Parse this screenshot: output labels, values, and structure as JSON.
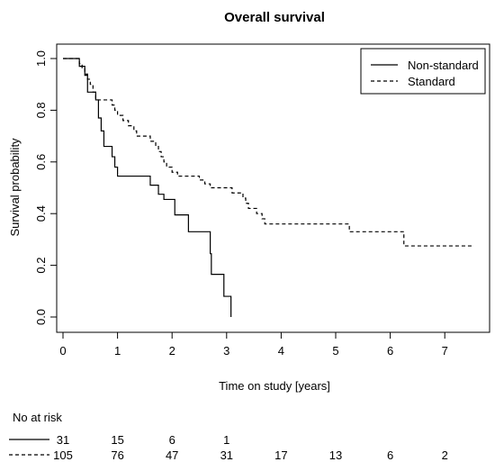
{
  "chart_data": {
    "type": "line",
    "title": "Overall survival",
    "xlabel": "Time on study [years]",
    "ylabel": "Survival probability",
    "xlim": [
      0,
      7.5
    ],
    "ylim": [
      0,
      1
    ],
    "x_ticks": [
      "0",
      "1",
      "2",
      "3",
      "4",
      "5",
      "6",
      "7"
    ],
    "y_ticks": [
      "0.0",
      "0.2",
      "0.4",
      "0.6",
      "0.8",
      "1.0"
    ],
    "grid": false,
    "legend_position": "top-right",
    "series": [
      {
        "name": "Non-standard",
        "line_style": "solid",
        "color": "#000000",
        "steps": [
          [
            0,
            1.0
          ],
          [
            0.3,
            0.97
          ],
          [
            0.4,
            0.935
          ],
          [
            0.45,
            0.87
          ],
          [
            0.6,
            0.84
          ],
          [
            0.65,
            0.77
          ],
          [
            0.7,
            0.72
          ],
          [
            0.75,
            0.66
          ],
          [
            0.9,
            0.62
          ],
          [
            0.95,
            0.58
          ],
          [
            1.0,
            0.545
          ],
          [
            1.6,
            0.51
          ],
          [
            1.75,
            0.475
          ],
          [
            1.85,
            0.455
          ],
          [
            2.05,
            0.395
          ],
          [
            2.3,
            0.33
          ],
          [
            2.7,
            0.245
          ],
          [
            2.72,
            0.165
          ],
          [
            2.95,
            0.08
          ],
          [
            3.08,
            0.0
          ]
        ]
      },
      {
        "name": "Standard",
        "line_style": "dashed",
        "color": "#000000",
        "steps": [
          [
            0,
            1.0
          ],
          [
            0.3,
            0.98
          ],
          [
            0.35,
            0.96
          ],
          [
            0.4,
            0.94
          ],
          [
            0.45,
            0.92
          ],
          [
            0.5,
            0.9
          ],
          [
            0.55,
            0.87
          ],
          [
            0.6,
            0.84
          ],
          [
            0.9,
            0.82
          ],
          [
            0.95,
            0.8
          ],
          [
            1.0,
            0.78
          ],
          [
            1.1,
            0.76
          ],
          [
            1.2,
            0.74
          ],
          [
            1.3,
            0.72
          ],
          [
            1.35,
            0.7
          ],
          [
            1.6,
            0.68
          ],
          [
            1.7,
            0.66
          ],
          [
            1.75,
            0.64
          ],
          [
            1.8,
            0.62
          ],
          [
            1.85,
            0.6
          ],
          [
            1.9,
            0.58
          ],
          [
            2.0,
            0.56
          ],
          [
            2.1,
            0.545
          ],
          [
            2.5,
            0.53
          ],
          [
            2.6,
            0.515
          ],
          [
            2.7,
            0.5
          ],
          [
            3.1,
            0.48
          ],
          [
            3.3,
            0.46
          ],
          [
            3.35,
            0.44
          ],
          [
            3.4,
            0.42
          ],
          [
            3.55,
            0.4
          ],
          [
            3.65,
            0.38
          ],
          [
            3.7,
            0.36
          ],
          [
            5.25,
            0.33
          ],
          [
            6.25,
            0.275
          ],
          [
            7.5,
            0.275
          ]
        ]
      }
    ]
  },
  "risk_table": {
    "title": "No at risk",
    "times": [
      0,
      1,
      2,
      3,
      4,
      5,
      6,
      7
    ],
    "rows": [
      {
        "name": "Non-standard",
        "line_style": "solid",
        "values": [
          "31",
          "15",
          "6",
          "1"
        ]
      },
      {
        "name": "Standard",
        "line_style": "dashed",
        "values": [
          "105",
          "76",
          "47",
          "31",
          "17",
          "13",
          "6",
          "2"
        ]
      }
    ]
  }
}
